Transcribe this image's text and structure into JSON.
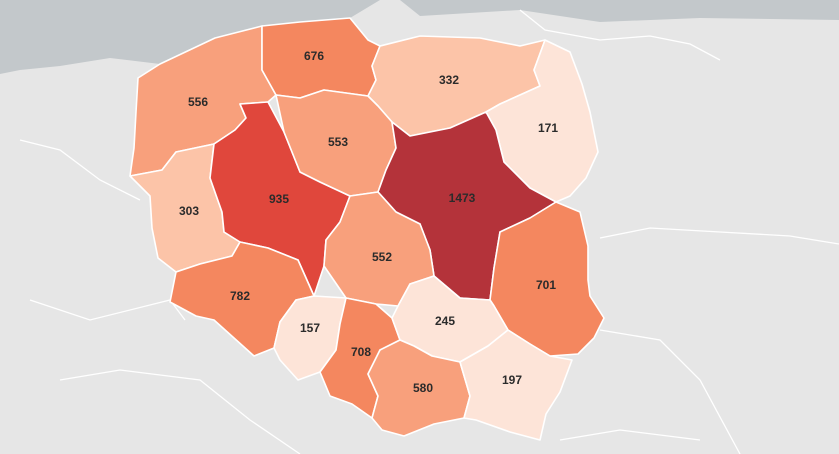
{
  "map": {
    "colors": {
      "background": "#e6e6e6",
      "sea": "#c3c8cb",
      "scale": [
        "#fde4d8",
        "#fcc4a8",
        "#f8a07c",
        "#f4875f",
        "#e0473c",
        "#b4333a"
      ]
    },
    "regions": [
      {
        "id": "zachodniopomorskie",
        "value": "556",
        "shade": 2
      },
      {
        "id": "pomorskie",
        "value": "676",
        "shade": 3
      },
      {
        "id": "warminsko-mazurskie",
        "value": "332",
        "shade": 1
      },
      {
        "id": "podlaskie",
        "value": "171",
        "shade": 0
      },
      {
        "id": "lubuskie",
        "value": "303",
        "shade": 1
      },
      {
        "id": "wielkopolskie",
        "value": "935",
        "shade": 4
      },
      {
        "id": "kujawsko-pomorskie",
        "value": "553",
        "shade": 2
      },
      {
        "id": "mazowieckie",
        "value": "1473",
        "shade": 5
      },
      {
        "id": "lodzkie",
        "value": "552",
        "shade": 2
      },
      {
        "id": "lubelskie",
        "value": "701",
        "shade": 3
      },
      {
        "id": "dolnoslaskie",
        "value": "782",
        "shade": 3
      },
      {
        "id": "opolskie",
        "value": "157",
        "shade": 0
      },
      {
        "id": "slaskie",
        "value": "708",
        "shade": 3
      },
      {
        "id": "swietokrzyskie",
        "value": "245",
        "shade": 0
      },
      {
        "id": "malopolskie",
        "value": "580",
        "shade": 2
      },
      {
        "id": "podkarpackie",
        "value": "197",
        "shade": 0
      }
    ]
  }
}
